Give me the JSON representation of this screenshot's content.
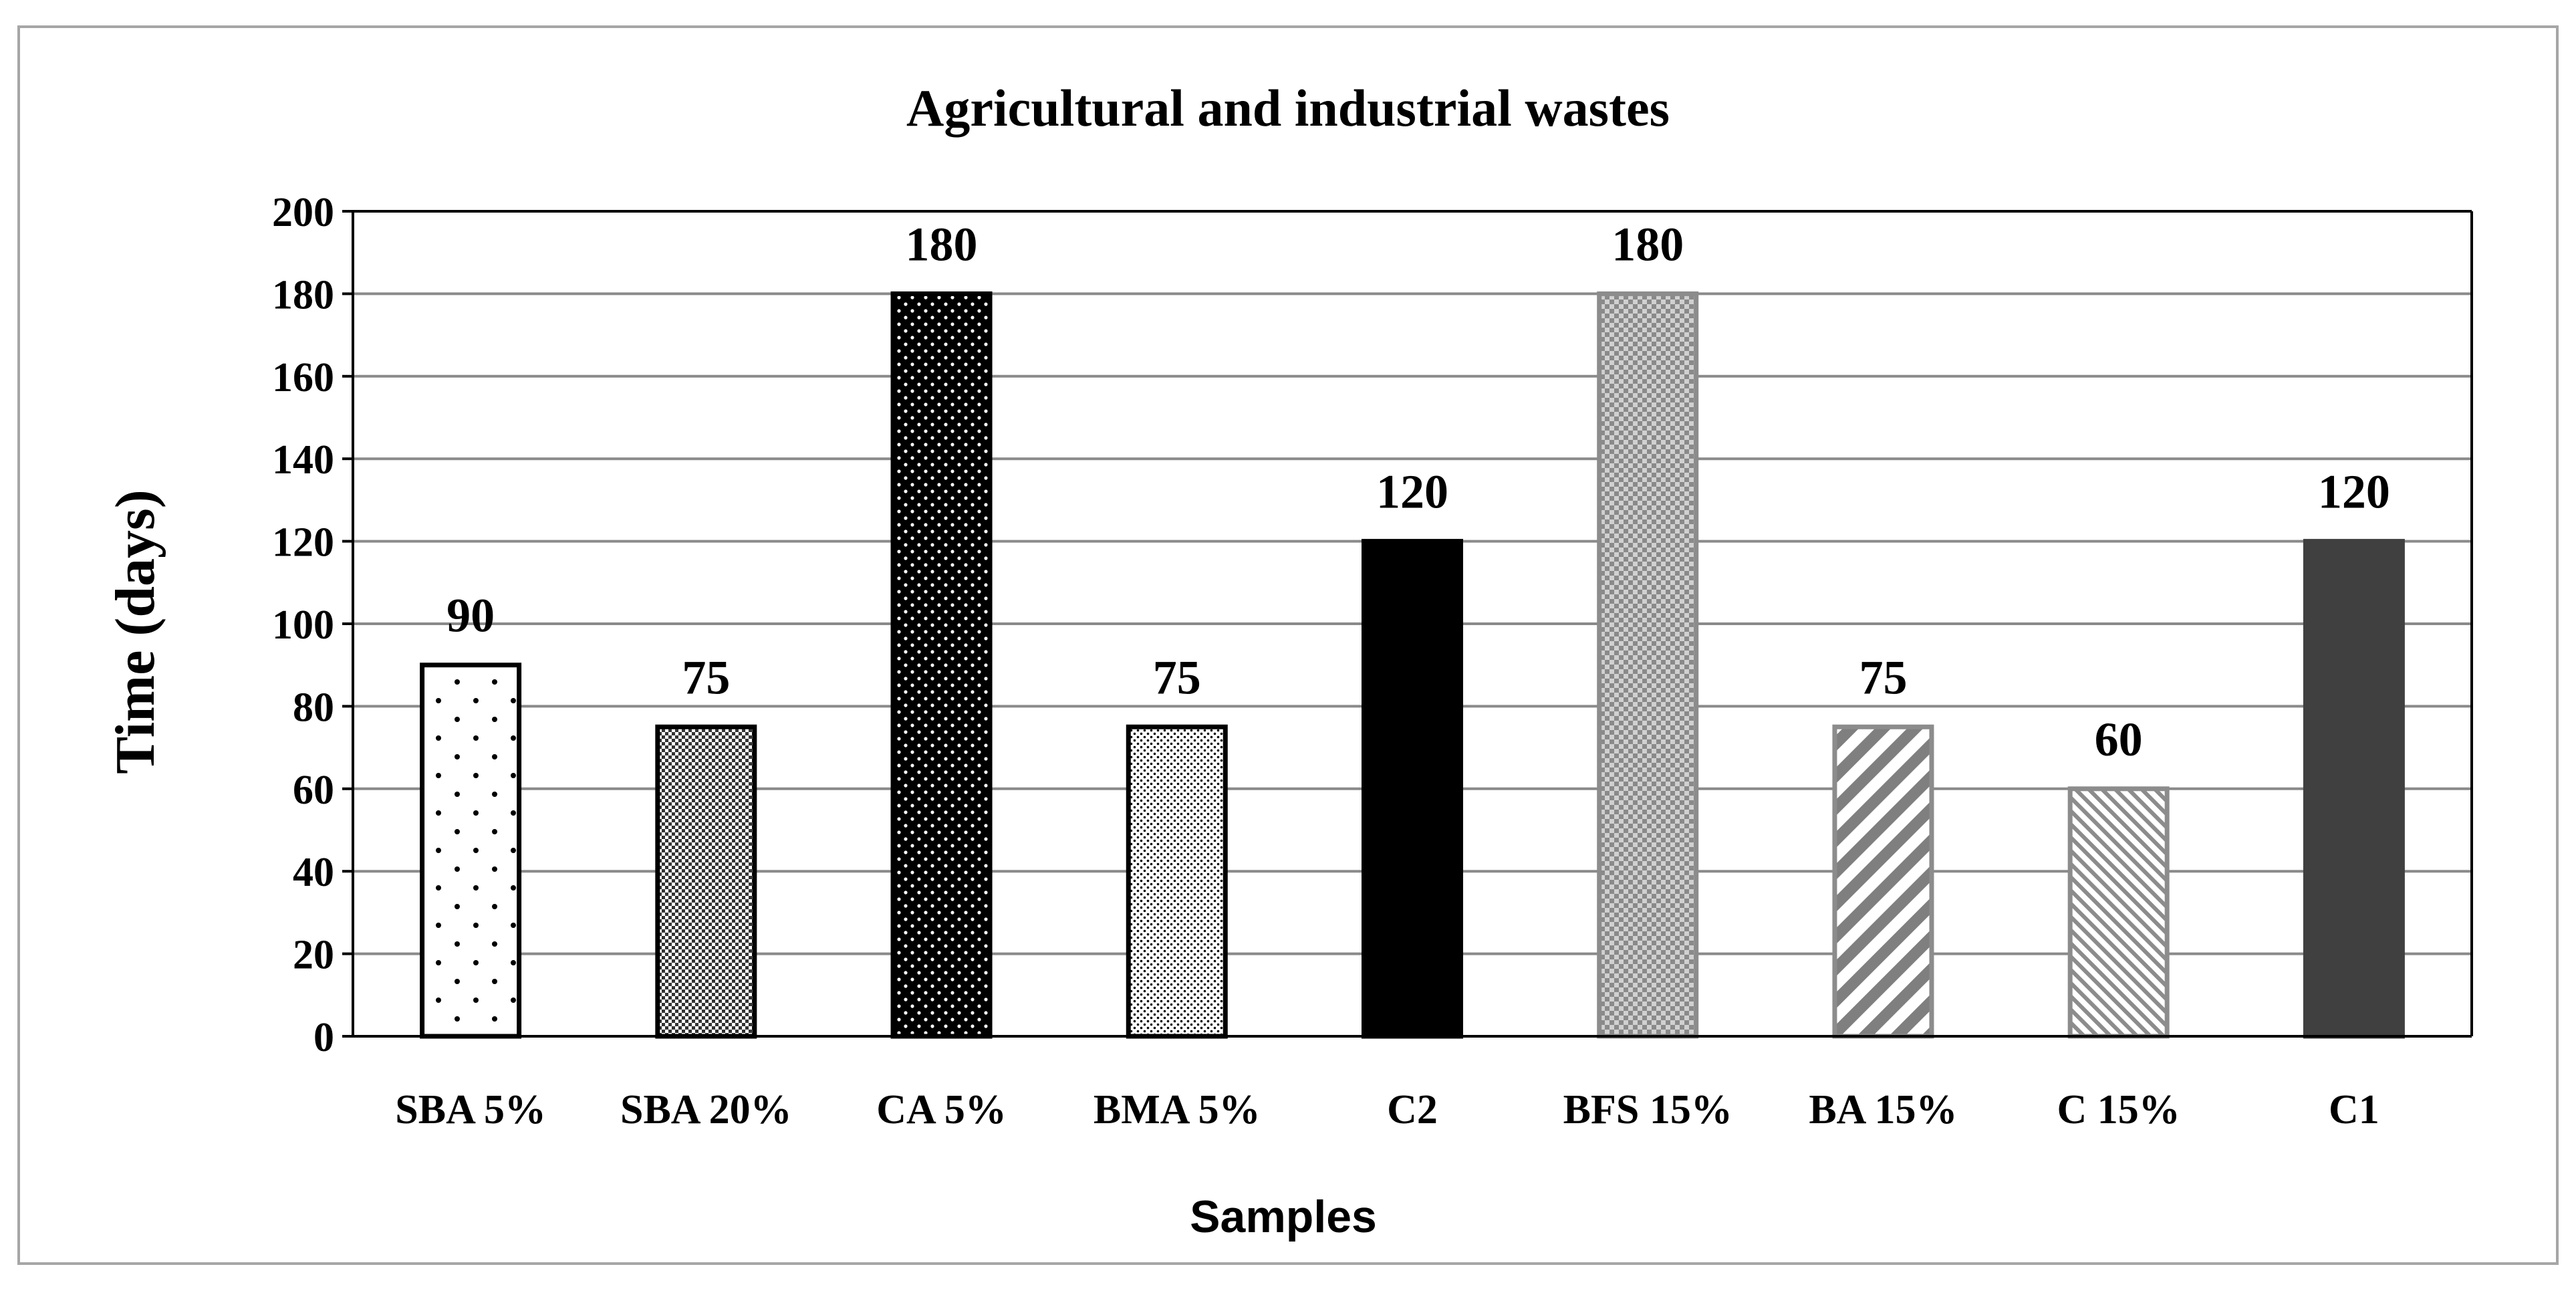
{
  "chart_data": {
    "type": "bar",
    "title": "Agricultural and industrial wastes",
    "xlabel": "Samples",
    "ylabel": "Time (days)",
    "ylim": [
      0,
      200
    ],
    "ytick_step": 20,
    "grid": true,
    "legend": "none",
    "categories": [
      "SBA 5%",
      "SBA 20%",
      "CA 5%",
      "BMA 5%",
      "C2",
      "BFS 15%",
      "BA 15%",
      "C 15%",
      "C1"
    ],
    "values": [
      90,
      75,
      180,
      75,
      120,
      180,
      75,
      60,
      120
    ],
    "data_labels": [
      "90",
      "75",
      "180",
      "75",
      "120",
      "180",
      "75",
      "60",
      "120"
    ],
    "fills": [
      "sparse-dots",
      "checker",
      "white-dots-on-black",
      "fine-dots",
      "solid-black",
      "grey-checker",
      "wide-diagonal",
      "fine-diagonal",
      "solid-dark-grey"
    ]
  },
  "colors": {
    "black": "#000000",
    "dark_grey": "#404040",
    "grey": "#8c8c8c",
    "grid": "#8a8a8a",
    "frame": "#a6a6a6",
    "white": "#ffffff"
  }
}
